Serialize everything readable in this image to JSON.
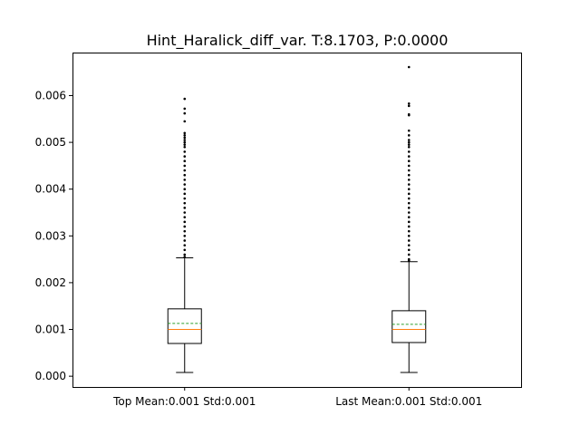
{
  "chart_data": {
    "type": "box",
    "title": "Hint_Haralick_diff_var. T:8.1703, P:0.0000",
    "xlabel": "",
    "ylabel": "",
    "ylim": [
      -0.00023,
      0.00692
    ],
    "yticks": [
      0.0,
      0.001,
      0.002,
      0.003,
      0.004,
      0.005,
      0.006
    ],
    "ytick_labels": [
      "0.000",
      "0.001",
      "0.002",
      "0.003",
      "0.004",
      "0.005",
      "0.006"
    ],
    "grid": false,
    "categories": [
      "Top Mean:0.001 Std:0.001",
      "Last Mean:0.001 Std:0.001"
    ],
    "boxes": [
      {
        "whisker_low": 8e-05,
        "q1": 0.0007,
        "median": 0.001,
        "mean": 0.00113,
        "q3": 0.00144,
        "whisker_high": 0.00253,
        "outliers": [
          0.00255,
          0.0026,
          0.0027,
          0.0028,
          0.0029,
          0.003,
          0.0031,
          0.0032,
          0.0033,
          0.0034,
          0.0035,
          0.0036,
          0.0037,
          0.0038,
          0.0039,
          0.004,
          0.0041,
          0.0042,
          0.0043,
          0.0044,
          0.0045,
          0.0046,
          0.0047,
          0.0048,
          0.0049,
          0.00495,
          0.005,
          0.00505,
          0.0051,
          0.00515,
          0.0052,
          0.00545,
          0.00562,
          0.00572,
          0.00593
        ]
      },
      {
        "whisker_low": 8e-05,
        "q1": 0.00072,
        "median": 0.001,
        "mean": 0.00111,
        "q3": 0.0014,
        "whisker_high": 0.00245,
        "outliers": [
          0.00247,
          0.0025,
          0.0026,
          0.0027,
          0.0028,
          0.0029,
          0.003,
          0.0031,
          0.0032,
          0.0033,
          0.0034,
          0.0035,
          0.0036,
          0.0037,
          0.0038,
          0.0039,
          0.004,
          0.0041,
          0.0042,
          0.0043,
          0.0044,
          0.0045,
          0.0046,
          0.0047,
          0.0048,
          0.0049,
          0.00495,
          0.005,
          0.00505,
          0.00515,
          0.00525,
          0.00558,
          0.0056,
          0.00578,
          0.00583,
          0.00661
        ]
      }
    ],
    "colors": {
      "box": "#000000",
      "median": "#ff7f0e",
      "mean": "#2ca02c",
      "outlier": "#000000"
    }
  }
}
